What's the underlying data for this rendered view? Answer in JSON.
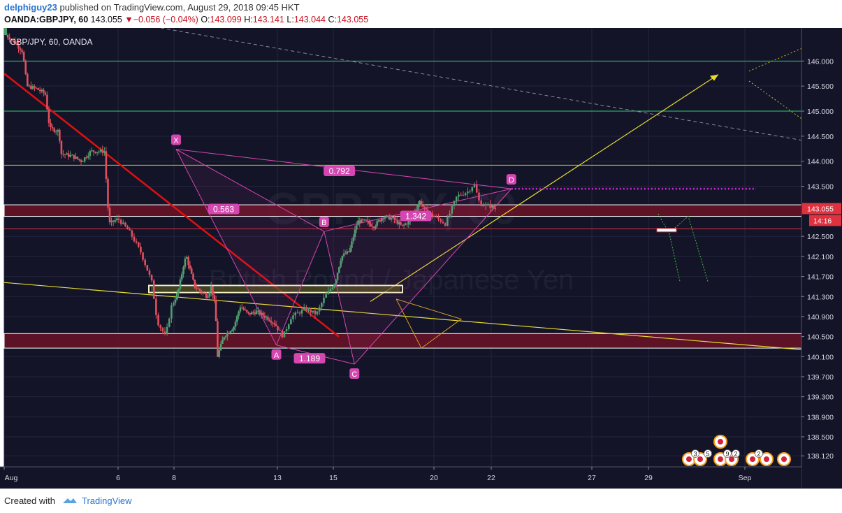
{
  "header": {
    "author": "delphiguy23",
    "published_text": "published on TradingView.com, August 29, 2018 09:45 HKT",
    "symbol": "OANDA:GBPJPY, 60",
    "last": "143.055",
    "change": "−0.056 (−0.04%)",
    "o_label": "O:",
    "o_value": "143.099",
    "h_label": "H:",
    "h_value": "143.141",
    "l_label": "L:",
    "l_value": "143.044",
    "c_label": "C:",
    "c_value": "143.055"
  },
  "footer": {
    "created": "Created with",
    "brand": "TradingView"
  },
  "watermark": {
    "symbol": "GBPJPY, 60",
    "name": "British Pound / Japanese Yen"
  },
  "colors": {
    "background": "#141428",
    "grid": "#23233e",
    "up": "#4fa06f",
    "down": "#e0505d",
    "green_line": "#2ecc71",
    "yellow": "#e6dd33",
    "magenta": "#d447b0",
    "red": "#e01010",
    "zone": "#6a1224",
    "price_label": "#e0313f"
  },
  "chart_data": {
    "type": "candlestick",
    "title": "GBP/JPY, 60, OANDA",
    "ylim": [
      137.9,
      146.66
    ],
    "y_ticks": [
      {
        "v": 146.0,
        "label": "146.000"
      },
      {
        "v": 145.5,
        "label": "145.500"
      },
      {
        "v": 145.0,
        "label": "145.000"
      },
      {
        "v": 144.5,
        "label": "144.500"
      },
      {
        "v": 144.0,
        "label": "144.000"
      },
      {
        "v": 143.5,
        "label": "143.500"
      },
      {
        "v": 142.5,
        "label": "142.500"
      },
      {
        "v": 142.1,
        "label": "142.100"
      },
      {
        "v": 141.7,
        "label": "141.700"
      },
      {
        "v": 141.3,
        "label": "141.300"
      },
      {
        "v": 140.9,
        "label": "140.900"
      },
      {
        "v": 140.5,
        "label": "140.500"
      },
      {
        "v": 140.1,
        "label": "140.100"
      },
      {
        "v": 139.7,
        "label": "139.700"
      },
      {
        "v": 139.3,
        "label": "139.300"
      },
      {
        "v": 138.9,
        "label": "138.900"
      },
      {
        "v": 138.5,
        "label": "138.500"
      },
      {
        "v": 138.12,
        "label": "138.120"
      }
    ],
    "x_ticks": [
      {
        "day": 1,
        "label": "Aug"
      },
      {
        "day": 6,
        "label": "6"
      },
      {
        "day": 8,
        "label": "8"
      },
      {
        "day": 13,
        "label": "13"
      },
      {
        "day": 15,
        "label": "15"
      },
      {
        "day": 20,
        "label": "20"
      },
      {
        "day": 22,
        "label": "22"
      },
      {
        "day": 27,
        "label": "27"
      },
      {
        "day": 29,
        "label": "29"
      },
      {
        "day": 32,
        "label": "Sep"
      }
    ],
    "current_price": {
      "value": 143.055,
      "label": "143.055",
      "countdown": "14:16"
    },
    "candle_path": [
      [
        1.0,
        146.55
      ],
      [
        1.4,
        146.4
      ],
      [
        1.8,
        146.2
      ],
      [
        2.0,
        145.5
      ],
      [
        2.4,
        145.45
      ],
      [
        2.8,
        145.35
      ],
      [
        3.0,
        144.65
      ],
      [
        3.4,
        144.6
      ],
      [
        3.5,
        144.15
      ],
      [
        4.0,
        144.1
      ],
      [
        4.4,
        144.0
      ],
      [
        4.8,
        144.2
      ],
      [
        5.0,
        144.2
      ],
      [
        5.4,
        144.2
      ],
      [
        5.6,
        142.75
      ],
      [
        6.0,
        142.85
      ],
      [
        6.4,
        142.6
      ],
      [
        6.8,
        142.2
      ],
      [
        7.2,
        141.6
      ],
      [
        7.4,
        140.8
      ],
      [
        7.7,
        140.5
      ],
      [
        7.9,
        141.1
      ],
      [
        8.2,
        141.4
      ],
      [
        8.5,
        142.0
      ],
      [
        8.6,
        142.1
      ],
      [
        8.8,
        141.8
      ],
      [
        9.0,
        141.5
      ],
      [
        9.6,
        141.3
      ],
      [
        9.8,
        141.5
      ],
      [
        10.0,
        141.1
      ],
      [
        10.1,
        140.1
      ],
      [
        10.4,
        140.5
      ],
      [
        10.9,
        140.7
      ],
      [
        11.2,
        141.1
      ],
      [
        11.6,
        140.95
      ],
      [
        12.0,
        141.0
      ],
      [
        12.6,
        140.85
      ],
      [
        12.9,
        140.75
      ],
      [
        13.2,
        140.5
      ],
      [
        13.5,
        140.9
      ],
      [
        14.0,
        141.05
      ],
      [
        14.4,
        140.95
      ],
      [
        14.7,
        141.3
      ],
      [
        15.1,
        141.6
      ],
      [
        15.4,
        142.1
      ],
      [
        15.8,
        142.2
      ],
      [
        16.2,
        142.8
      ],
      [
        16.6,
        142.8
      ],
      [
        17.0,
        142.7
      ],
      [
        17.5,
        142.9
      ],
      [
        18.0,
        142.85
      ],
      [
        18.4,
        142.7
      ],
      [
        18.8,
        142.8
      ],
      [
        19.3,
        143.2
      ],
      [
        19.6,
        143.0
      ],
      [
        20.0,
        142.9
      ],
      [
        20.4,
        142.75
      ],
      [
        20.8,
        143.3
      ],
      [
        21.2,
        143.4
      ],
      [
        21.4,
        143.55
      ],
      [
        21.6,
        143.15
      ],
      [
        22.0,
        143.1
      ],
      [
        22.2,
        143.05
      ]
    ],
    "pattern": {
      "points": [
        {
          "label": "X",
          "day": 8.1,
          "price": 144.24
        },
        {
          "label": "A",
          "day": 12.95,
          "price": 140.33
        },
        {
          "label": "B",
          "day": 14.67,
          "price": 142.6
        },
        {
          "label": "C",
          "day": 16.05,
          "price": 139.95
        },
        {
          "label": "D",
          "day": 23.0,
          "price": 143.45
        }
      ],
      "ratios": [
        {
          "label": "0.563",
          "day": 10.4,
          "price": 143.04
        },
        {
          "label": "0.792",
          "day": 15.3,
          "price": 143.8
        },
        {
          "label": "1.342",
          "day": 19.1,
          "price": 142.9
        },
        {
          "label": "1.189",
          "day": 14.15,
          "price": 140.06
        }
      ]
    },
    "annotations": {
      "horizontal_lines": [
        146.0,
        145.0,
        143.92,
        142.65
      ],
      "resistance_level": 143.45,
      "zones": [
        [
          142.9,
          143.13
        ],
        [
          140.27,
          140.56
        ]
      ]
    }
  }
}
